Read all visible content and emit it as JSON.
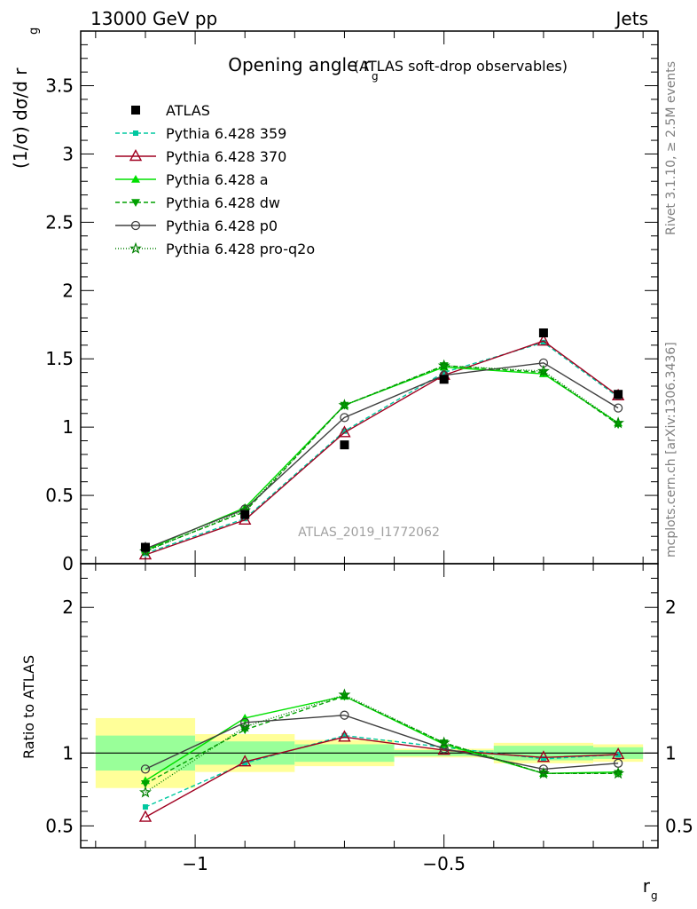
{
  "header": {
    "left": "13000 GeV pp",
    "right": "Jets"
  },
  "side_labels": {
    "rivet": "Rivet 3.1.10, ≥ 2.5M events",
    "mcplots": "mcplots.cern.ch [arXiv:1306.3436]"
  },
  "chart_data": {
    "type": "line",
    "title": "Opening angle r",
    "title_sub": "g",
    "title_suffix": "(ATLAS soft-drop observables)",
    "analysis_tag": "ATLAS_2019_I1772062",
    "ylabel": "(1/σ) dσ/d r",
    "ylabel_sub": "g",
    "ratio_ylabel": "Ratio to ATLAS",
    "xlabel": "r",
    "xlabel_sub": "g",
    "xlim": [
      -1.23,
      -0.07
    ],
    "ylim_main": [
      0,
      3.9
    ],
    "ylim_ratio": [
      0.35,
      2.3
    ],
    "x_ticks": [
      -1,
      -0.5
    ],
    "x_tick_labels": [
      "−1",
      "−0.5"
    ],
    "y_ticks_main": [
      0,
      0.5,
      1,
      1.5,
      2,
      2.5,
      3,
      3.5
    ],
    "y_tick_labels_main": [
      "0",
      "0.5",
      "1",
      "1.5",
      "2",
      "2.5",
      "3",
      "3.5"
    ],
    "y_ticks_ratio": [
      0.5,
      1,
      2
    ],
    "y_tick_labels_ratio": [
      "0.5",
      "1",
      "2"
    ],
    "x": [
      -1.1,
      -0.9,
      -0.7,
      -0.5,
      -0.3,
      -0.15
    ],
    "bin_edges": [
      -1.2,
      -1.0,
      -0.8,
      -0.6,
      -0.4,
      -0.2,
      -0.1
    ],
    "data": {
      "name": "ATLAS",
      "values": [
        0.12,
        0.36,
        0.87,
        1.35,
        1.69,
        1.24
      ],
      "band_inner": [
        0.13,
        0.08,
        0.05,
        0.02,
        0.04,
        0.04
      ],
      "band_outer": [
        0.13,
        0.08,
        0.05,
        0.02,
        0.04,
        0.04
      ],
      "ratio_band_inner": [
        0.12,
        0.08,
        0.06,
        0.02,
        0.05,
        0.04
      ],
      "ratio_band_outer": [
        0.24,
        0.13,
        0.09,
        0.03,
        0.07,
        0.06
      ]
    },
    "series": [
      {
        "name": "Pythia 6.428 359",
        "values": [
          0.075,
          0.33,
          0.97,
          1.4,
          1.62,
          1.22
        ],
        "ratio": [
          0.63,
          0.93,
          1.12,
          1.04,
          0.96,
          0.99
        ],
        "color": "#00c8a0",
        "dash": "5,3",
        "marker": "square-filled"
      },
      {
        "name": "Pythia 6.428 370",
        "values": [
          0.065,
          0.32,
          0.96,
          1.38,
          1.63,
          1.23
        ],
        "ratio": [
          0.56,
          0.94,
          1.11,
          1.02,
          0.97,
          0.99
        ],
        "color": "#a00020",
        "dash": "",
        "marker": "triangle-open"
      },
      {
        "name": "Pythia 6.428 a",
        "values": [
          0.1,
          0.41,
          1.16,
          1.44,
          1.39,
          1.03
        ],
        "ratio": [
          0.81,
          1.24,
          1.39,
          1.06,
          0.86,
          0.87
        ],
        "color": "#00e000",
        "dash": "",
        "marker": "triangle-filled"
      },
      {
        "name": "Pythia 6.428 dw",
        "values": [
          0.095,
          0.38,
          1.16,
          1.45,
          1.4,
          1.02
        ],
        "ratio": [
          0.79,
          1.16,
          1.39,
          1.07,
          0.86,
          0.86
        ],
        "color": "#00a000",
        "dash": "5,3",
        "marker": "triangle-down-filled"
      },
      {
        "name": "Pythia 6.428 p0",
        "values": [
          0.11,
          0.4,
          1.07,
          1.38,
          1.47,
          1.14
        ],
        "ratio": [
          0.89,
          1.21,
          1.26,
          1.03,
          0.89,
          0.93
        ],
        "color": "#404040",
        "dash": "",
        "marker": "circle-open"
      },
      {
        "name": "Pythia 6.428 pro-q2o",
        "values": [
          0.09,
          0.39,
          1.16,
          1.45,
          1.41,
          1.03
        ],
        "ratio": [
          0.73,
          1.18,
          1.4,
          1.07,
          0.86,
          0.86
        ],
        "color": "#008000",
        "dash": "1,2",
        "marker": "star-open"
      }
    ],
    "legend_position": "top-left",
    "colors": {
      "band_outer": "#ffff99",
      "band_inner": "#99ff99"
    }
  }
}
